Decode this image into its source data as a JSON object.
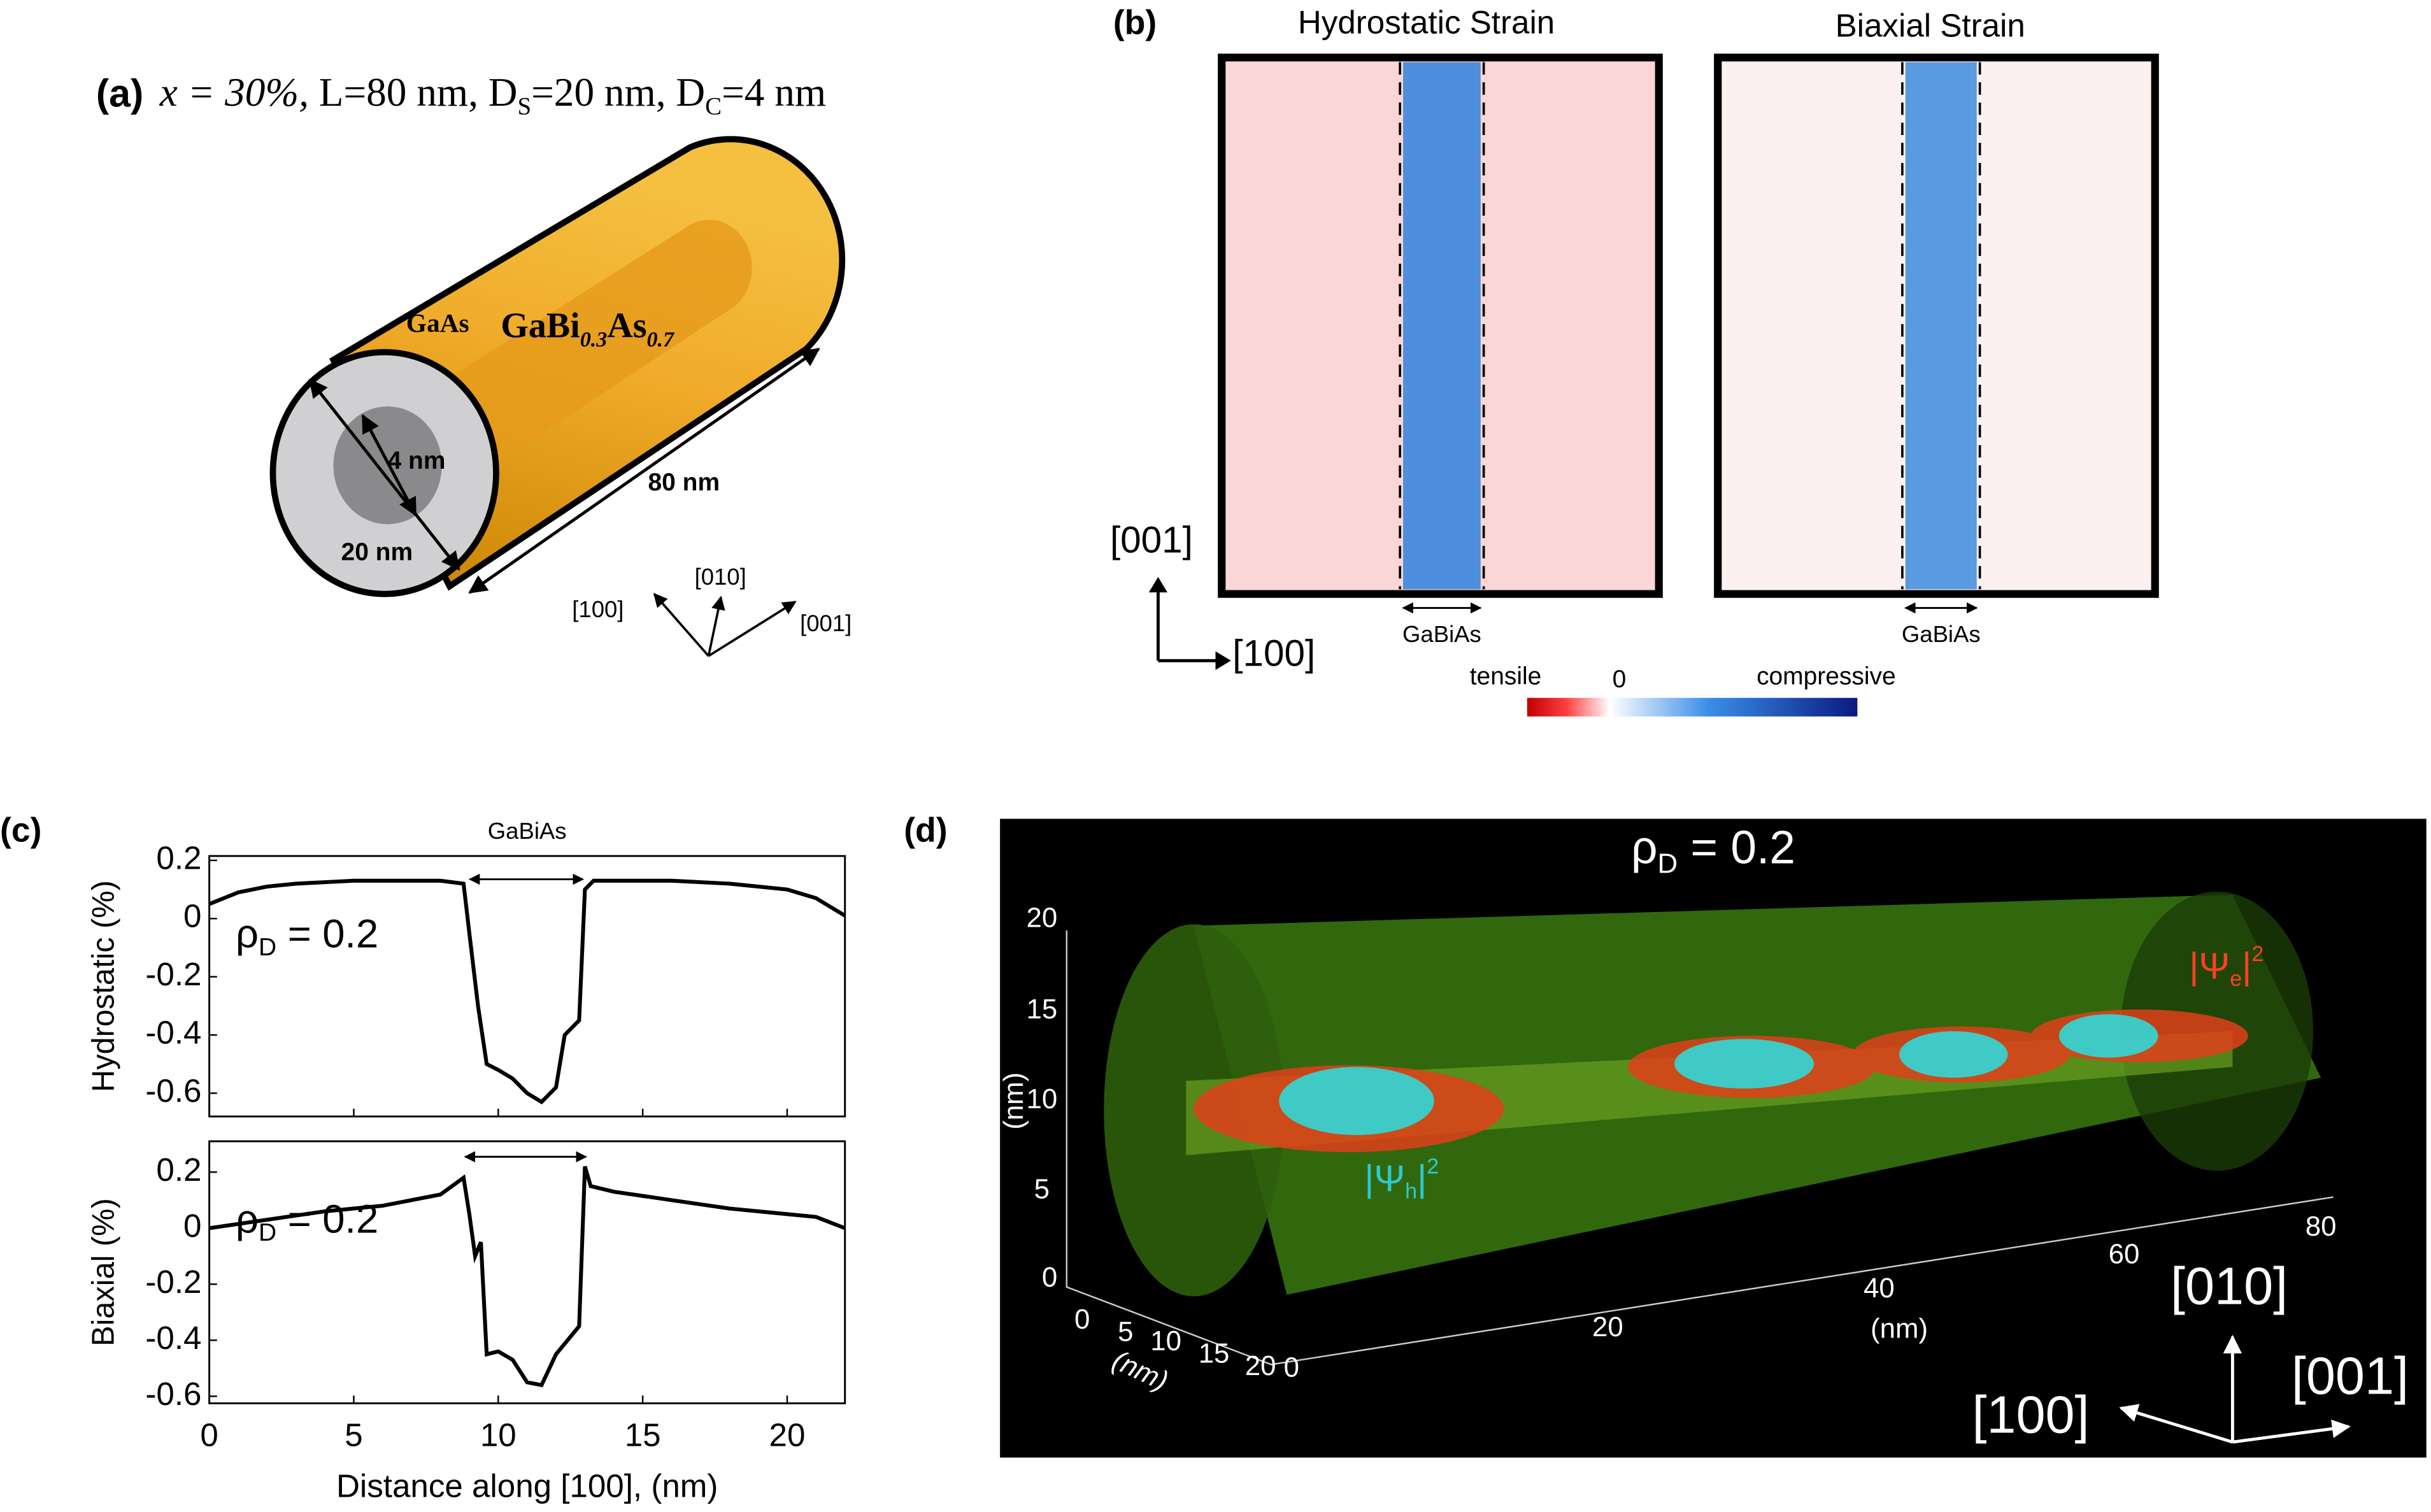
{
  "panel_a": {
    "label": "(a)",
    "title": {
      "x": "x = 30%,",
      "text1": "L=80 nm, D",
      "sub1": "S",
      "text2": "=20 nm, D",
      "sub2": "C",
      "text3": "=4 nm"
    },
    "shell": "GaAs",
    "core": {
      "main": "GaBi",
      "sub1": "0.3",
      "mid": "As",
      "sub2": "0.7"
    },
    "core_diameter": "4 nm",
    "shell_diameter": "20 nm",
    "length": "80 nm",
    "axes": [
      "[100]",
      "[010]",
      "[001]"
    ]
  },
  "panel_b": {
    "label": "(b)",
    "maps": [
      "Hydrostatic Strain",
      "Biaxial Strain"
    ],
    "axis_vertical": "[001]",
    "axis_horizontal": "[100]",
    "core_labels": [
      "GaBiAs",
      "GaBiAs"
    ],
    "colorbar": {
      "left": "tensile",
      "middle": "0",
      "right": "compressive"
    }
  },
  "panel_c": {
    "label": "(c)",
    "core_label": "GaBiAs",
    "xlabel": "Distance along [100], (nm)"
  },
  "chart_data": [
    {
      "type": "line",
      "ylabel": "Hydrostatic  (%)",
      "annotation": {
        "main": "ρ",
        "sub": "D",
        "rest": " = 0.2"
      },
      "x": [
        0,
        1,
        2,
        3,
        4,
        5,
        6,
        7,
        8,
        8.8,
        9.0,
        9.3,
        9.6,
        10,
        10.5,
        11,
        11.5,
        12,
        12.3,
        12.8,
        13.0,
        13.3,
        14,
        16,
        18,
        20,
        21,
        22
      ],
      "series": [
        {
          "name": "Hydrostatic",
          "color": "#000000",
          "values": [
            0.05,
            0.09,
            0.11,
            0.12,
            0.125,
            0.13,
            0.13,
            0.13,
            0.13,
            0.12,
            -0.05,
            -0.3,
            -0.5,
            -0.52,
            -0.55,
            -0.6,
            -0.63,
            -0.58,
            -0.4,
            -0.35,
            0.1,
            0.13,
            0.13,
            0.13,
            0.12,
            0.1,
            0.07,
            0.01
          ]
        }
      ],
      "xlim": [
        0,
        22
      ],
      "xticks": [
        0,
        5,
        10,
        15,
        20
      ],
      "ylim": [
        -0.68,
        0.215
      ],
      "yticks": [
        0.2,
        0,
        -0.2,
        -0.4,
        -0.6
      ]
    },
    {
      "type": "line",
      "ylabel": "Biaxial  (%)",
      "annotation": {
        "main": "ρ",
        "sub": "D",
        "rest": " = 0.2"
      },
      "x": [
        0,
        2,
        4,
        6,
        8,
        8.8,
        9.0,
        9.2,
        9.4,
        9.6,
        10,
        10.5,
        11,
        11.5,
        12,
        12.4,
        12.8,
        13.0,
        13.2,
        14,
        16,
        18,
        20,
        21,
        22
      ],
      "series": [
        {
          "name": "Biaxial",
          "color": "#000000",
          "values": [
            0.0,
            0.03,
            0.06,
            0.08,
            0.12,
            0.18,
            0.05,
            -0.1,
            -0.05,
            -0.45,
            -0.44,
            -0.47,
            -0.55,
            -0.56,
            -0.45,
            -0.4,
            -0.35,
            0.22,
            0.15,
            0.13,
            0.1,
            0.07,
            0.05,
            0.04,
            0.0
          ]
        }
      ],
      "xlim": [
        0,
        22
      ],
      "xticks": [
        0,
        5,
        10,
        15,
        20
      ],
      "ylim": [
        -0.625,
        0.31
      ],
      "yticks": [
        0.2,
        0,
        -0.2,
        -0.4,
        -0.6
      ]
    }
  ],
  "panel_d": {
    "label": "(d)",
    "title": {
      "main": "ρ",
      "sub": "D",
      "rest": " = 0.2"
    },
    "electron": {
      "main": "|Ψ",
      "sub": "e",
      "close": "|",
      "sup": "2"
    },
    "hole": {
      "main": "|Ψ",
      "sub": "h",
      "close": "|",
      "sup": "2"
    },
    "vertical_ticks": [
      "20",
      "15",
      "10",
      "5",
      "0"
    ],
    "depth_ticks": [
      "0",
      "5",
      "10",
      "15",
      "20",
      "0"
    ],
    "length_ticks": [
      "20",
      "40",
      "60",
      "80"
    ],
    "unit": "(nm)",
    "axes": [
      "[010]",
      "[100]",
      "[001]"
    ]
  }
}
